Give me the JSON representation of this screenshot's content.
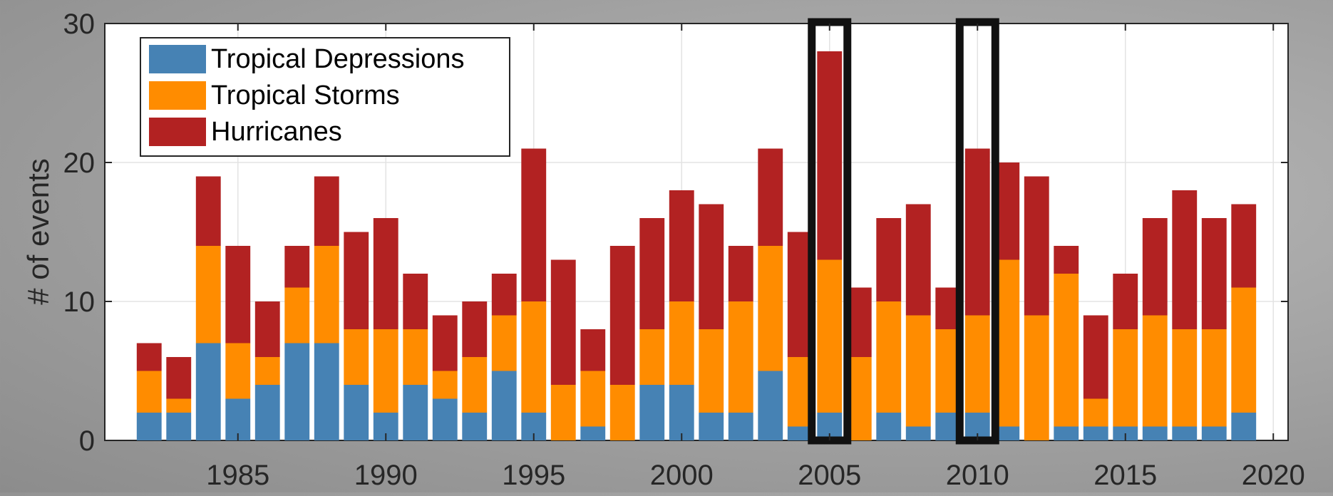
{
  "chart_data": {
    "type": "bar",
    "stacked": true,
    "title": "",
    "xlabel": "",
    "ylabel": "# of events",
    "x": [
      1982,
      1983,
      1984,
      1985,
      1986,
      1987,
      1988,
      1989,
      1990,
      1991,
      1992,
      1993,
      1994,
      1995,
      1996,
      1997,
      1998,
      1999,
      2000,
      2001,
      2002,
      2003,
      2004,
      2005,
      2006,
      2007,
      2008,
      2009,
      2010,
      2011,
      2012,
      2013,
      2014,
      2015,
      2016,
      2017,
      2018,
      2019
    ],
    "xlim": [
      1980.5,
      2020.5
    ],
    "ylim": [
      0,
      30
    ],
    "xticks": [
      1985,
      1990,
      1995,
      2000,
      2005,
      2010,
      2015,
      2020
    ],
    "yticks": [
      0,
      10,
      20,
      30
    ],
    "xtick_labels": [
      "1985",
      "1990",
      "1995",
      "2000",
      "2005",
      "2010",
      "2015",
      "2020"
    ],
    "ytick_labels": [
      "0",
      "10",
      "20",
      "30"
    ],
    "grid": true,
    "legend_position": "top-left",
    "series": [
      {
        "name": "Tropical Depressions",
        "color": "#4682B4",
        "values": [
          2,
          2,
          7,
          3,
          4,
          7,
          7,
          4,
          2,
          4,
          3,
          2,
          5,
          2,
          0,
          1,
          0,
          4,
          4,
          2,
          2,
          5,
          1,
          2,
          0,
          2,
          1,
          2,
          2,
          1,
          0,
          1,
          1,
          1,
          1,
          1,
          1,
          2
        ]
      },
      {
        "name": "Tropical Storms",
        "color": "#FF8C00",
        "values": [
          3,
          1,
          7,
          4,
          2,
          4,
          7,
          4,
          6,
          4,
          2,
          4,
          4,
          8,
          4,
          4,
          4,
          4,
          6,
          6,
          8,
          9,
          5,
          11,
          6,
          8,
          8,
          6,
          7,
          12,
          9,
          11,
          2,
          7,
          8,
          7,
          7,
          9
        ]
      },
      {
        "name": "Hurricanes",
        "color": "#B22222",
        "values": [
          2,
          3,
          5,
          7,
          4,
          3,
          5,
          7,
          8,
          4,
          4,
          4,
          3,
          11,
          9,
          3,
          10,
          8,
          8,
          9,
          4,
          7,
          9,
          15,
          5,
          6,
          8,
          3,
          12,
          7,
          10,
          2,
          6,
          4,
          7,
          10,
          8,
          6
        ]
      }
    ],
    "highlighted_years": [
      2005,
      2010
    ]
  }
}
